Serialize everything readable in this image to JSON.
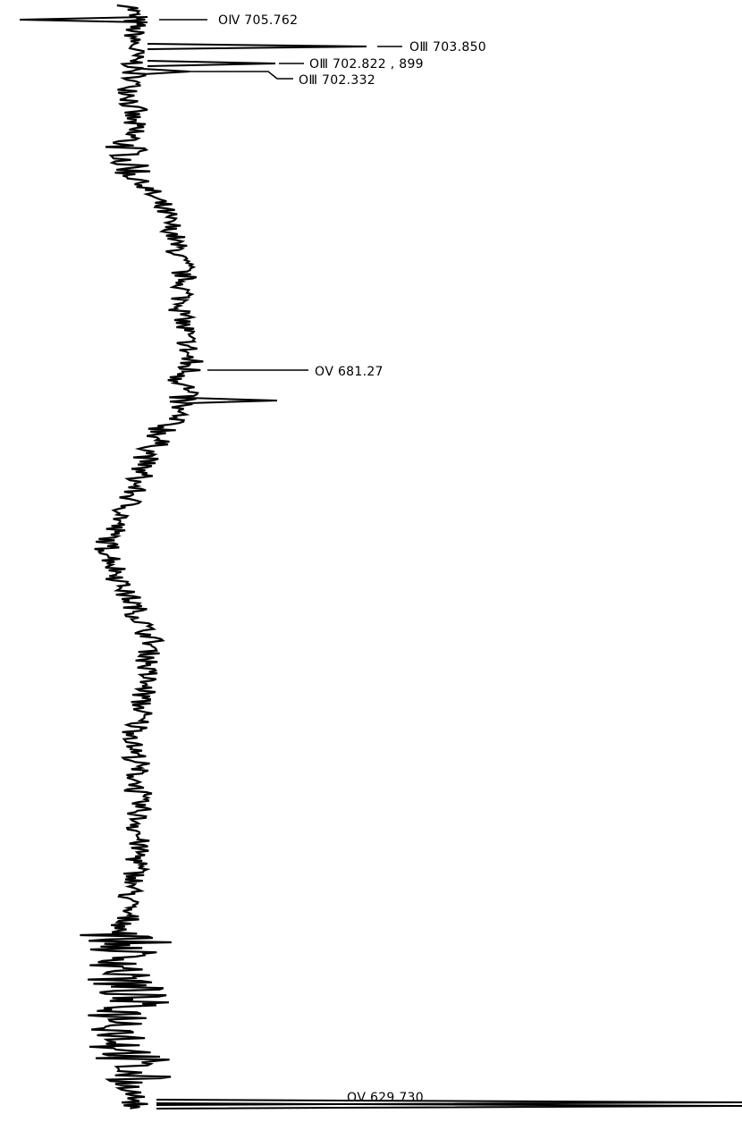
{
  "chart_data": {
    "type": "line",
    "orientation": "vertical",
    "title": "",
    "xlabel": "",
    "ylabel": "",
    "wavelength_range": [
      626,
      707
    ],
    "grid": false,
    "legend": false,
    "line_color": "#000000",
    "annotations": [
      {
        "text": "OⅣ 705.762",
        "wavelength": 705.762
      },
      {
        "text": "OⅢ 703.850",
        "wavelength": 703.85
      },
      {
        "text": "OⅢ 702.822 , 899",
        "wavelength": 702.86
      },
      {
        "text": "OⅢ 702.332",
        "wavelength": 702.332
      },
      {
        "text": "OⅤ 681.27",
        "wavelength": 681.27
      },
      {
        "text": "OⅤ 629.730",
        "wavelength": 629.73
      }
    ]
  }
}
